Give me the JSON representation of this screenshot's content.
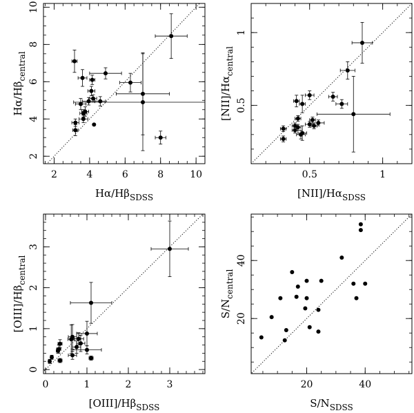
{
  "chart_data": [
    {
      "type": "scatter",
      "title": "",
      "xlabel": {
        "main": "Hα/Hβ",
        "sub": "SDSS"
      },
      "ylabel": {
        "main": "Hα/Hβ",
        "sub": "central"
      },
      "xlim": [
        1.4,
        10.5
      ],
      "ylim": [
        1.6,
        10.2
      ],
      "xticks": [
        2,
        4,
        6,
        8,
        10
      ],
      "yticks": [
        2,
        4,
        6,
        8,
        10
      ],
      "xminor": 0.5,
      "yminor": 0.5,
      "one_to_one": true,
      "points": [
        {
          "x": 8.6,
          "y": 8.45,
          "xerr": 0.9,
          "yerr": 1.2
        },
        {
          "x": 3.15,
          "y": 7.1,
          "xerr": 0.15,
          "yerr": 0.6
        },
        {
          "x": 3.6,
          "y": 6.2,
          "xerr": 0.25,
          "yerr": 0.45
        },
        {
          "x": 4.9,
          "y": 6.45,
          "xerr": 0.9,
          "yerr": 0.3
        },
        {
          "x": 4.15,
          "y": 6.1,
          "xerr": 0.15,
          "yerr": 0.25
        },
        {
          "x": 6.3,
          "y": 5.95,
          "xerr": 0.6,
          "yerr": 0.5
        },
        {
          "x": 4.1,
          "y": 5.5,
          "xerr": 0.2,
          "yerr": 0.25
        },
        {
          "x": 7.0,
          "y": 5.35,
          "xerr": 1.5,
          "yerr": 2.2
        },
        {
          "x": 4.2,
          "y": 5.1,
          "xerr": 0.2,
          "yerr": 0.2
        },
        {
          "x": 3.5,
          "y": 4.8,
          "xerr": 0.3,
          "yerr": 0.3
        },
        {
          "x": 3.95,
          "y": 4.95,
          "xerr": 0.35,
          "yerr": 0.2
        },
        {
          "x": 4.6,
          "y": 4.95,
          "xerr": 0.3,
          "yerr": 0.25
        },
        {
          "x": 7.0,
          "y": 4.9,
          "xerr": 3.9,
          "yerr": 2.6
        },
        {
          "x": 3.75,
          "y": 4.4,
          "xerr": 0.2,
          "yerr": 0.25
        },
        {
          "x": 3.65,
          "y": 4.3,
          "xerr": 0.2,
          "yerr": 0.2
        },
        {
          "x": 3.65,
          "y": 4.0,
          "xerr": 0.25,
          "yerr": 0.2
        },
        {
          "x": 3.2,
          "y": 3.8,
          "xerr": 0.2,
          "yerr": 0.2
        },
        {
          "x": 4.25,
          "y": 3.7,
          "xerr": 0,
          "yerr": 0
        },
        {
          "x": 3.2,
          "y": 3.4,
          "xerr": 0.15,
          "yerr": 0.3
        },
        {
          "x": 8.0,
          "y": 3.0,
          "xerr": 0.3,
          "yerr": 0.35
        }
      ]
    },
    {
      "type": "scatter",
      "title": "",
      "xlabel": {
        "main": "[NII]/Hα",
        "sub": "SDSS"
      },
      "ylabel": {
        "main": "[NII]/Hα",
        "sub": "central"
      },
      "xlim": [
        0.1,
        1.2
      ],
      "ylim": [
        0.1,
        1.2
      ],
      "xticks": [
        0.5,
        1
      ],
      "yticks": [
        0.5,
        1
      ],
      "xminor": 0.1,
      "yminor": 0.1,
      "one_to_one": true,
      "points": [
        {
          "x": 0.86,
          "y": 0.93,
          "xerr": 0.07,
          "yerr": 0.14
        },
        {
          "x": 0.8,
          "y": 0.44,
          "xerr": 0.25,
          "yerr": 0.26
        },
        {
          "x": 0.76,
          "y": 0.74,
          "xerr": 0.05,
          "yerr": 0.06
        },
        {
          "x": 0.66,
          "y": 0.56,
          "xerr": 0.03,
          "yerr": 0.03
        },
        {
          "x": 0.72,
          "y": 0.51,
          "xerr": 0.04,
          "yerr": 0.03
        },
        {
          "x": 0.5,
          "y": 0.57,
          "xerr": 0.03,
          "yerr": 0.03
        },
        {
          "x": 0.41,
          "y": 0.53,
          "xerr": 0.02,
          "yerr": 0.04
        },
        {
          "x": 0.45,
          "y": 0.51,
          "xerr": 0.02,
          "yerr": 0.06
        },
        {
          "x": 0.56,
          "y": 0.38,
          "xerr": 0.04,
          "yerr": 0.02
        },
        {
          "x": 0.52,
          "y": 0.4,
          "xerr": 0.02,
          "yerr": 0.02
        },
        {
          "x": 0.5,
          "y": 0.37,
          "xerr": 0.03,
          "yerr": 0.02
        },
        {
          "x": 0.53,
          "y": 0.36,
          "xerr": 0.02,
          "yerr": 0.02
        },
        {
          "x": 0.42,
          "y": 0.41,
          "xerr": 0.02,
          "yerr": 0.02
        },
        {
          "x": 0.4,
          "y": 0.36,
          "xerr": 0.02,
          "yerr": 0.02
        },
        {
          "x": 0.42,
          "y": 0.35,
          "xerr": 0.02,
          "yerr": 0.02
        },
        {
          "x": 0.32,
          "y": 0.34,
          "xerr": 0.02,
          "yerr": 0.02
        },
        {
          "x": 0.4,
          "y": 0.33,
          "xerr": 0.02,
          "yerr": 0.02
        },
        {
          "x": 0.45,
          "y": 0.31,
          "xerr": 0.03,
          "yerr": 0.05
        },
        {
          "x": 0.44,
          "y": 0.3,
          "xerr": 0.03,
          "yerr": 0.03
        },
        {
          "x": 0.32,
          "y": 0.27,
          "xerr": 0.02,
          "yerr": 0.02
        }
      ]
    },
    {
      "type": "scatter",
      "title": "",
      "xlabel": {
        "main": "[OIII]/Hβ",
        "sub": "SDSS"
      },
      "ylabel": {
        "main": "[OIII]/Hβ",
        "sub": "central"
      },
      "xlim": [
        -0.05,
        3.85
      ],
      "ylim": [
        -0.1,
        3.8
      ],
      "xticks": [
        0,
        1,
        2,
        3
      ],
      "yticks": [
        0,
        1,
        2,
        3
      ],
      "xminor": 0.2,
      "yminor": 0.2,
      "one_to_one": true,
      "points": [
        {
          "x": 3.0,
          "y": 2.95,
          "xerr": 0.45,
          "yerr": 0.68
        },
        {
          "x": 1.1,
          "y": 1.63,
          "xerr": 0.5,
          "yerr": 0.5
        },
        {
          "x": 1.0,
          "y": 0.88,
          "xerr": 0.25,
          "yerr": 0.3
        },
        {
          "x": 0.65,
          "y": 0.8,
          "xerr": 0.1,
          "yerr": 0.3
        },
        {
          "x": 0.62,
          "y": 0.74,
          "xerr": 0.08,
          "yerr": 0.35
        },
        {
          "x": 0.8,
          "y": 0.75,
          "xerr": 0.12,
          "yerr": 0.15
        },
        {
          "x": 0.85,
          "y": 0.64,
          "xerr": 0.1,
          "yerr": 0.2
        },
        {
          "x": 0.75,
          "y": 0.55,
          "xerr": 0.1,
          "yerr": 0.15
        },
        {
          "x": 0.35,
          "y": 0.63,
          "xerr": 0.05,
          "yerr": 0.1
        },
        {
          "x": 0.32,
          "y": 0.5,
          "xerr": 0.05,
          "yerr": 0.1
        },
        {
          "x": 0.3,
          "y": 0.46,
          "xerr": 0.04,
          "yerr": 0.06
        },
        {
          "x": 1.0,
          "y": 0.48,
          "xerr": 0.35,
          "yerr": 0.1
        },
        {
          "x": 0.65,
          "y": 0.35,
          "xerr": 0.1,
          "yerr": 0.1
        },
        {
          "x": 0.15,
          "y": 0.3,
          "xerr": 0.03,
          "yerr": 0.05
        },
        {
          "x": 0.35,
          "y": 0.22,
          "xerr": 0.05,
          "yerr": 0.05
        },
        {
          "x": 1.1,
          "y": 0.28,
          "xerr": 0.05,
          "yerr": 0.05
        },
        {
          "x": 0.1,
          "y": 0.2,
          "xerr": 0.03,
          "yerr": 0.05
        }
      ]
    },
    {
      "type": "scatter",
      "title": "",
      "xlabel": {
        "main": "S/N",
        "sub": "SDSS"
      },
      "ylabel": {
        "main": "S/N",
        "sub": "central"
      },
      "xlim": [
        1,
        56
      ],
      "ylim": [
        1,
        56
      ],
      "xticks": [
        20,
        40
      ],
      "yticks": [
        20,
        40
      ],
      "xminor": 5,
      "yminor": 5,
      "one_to_one": true,
      "points": [
        {
          "x": 38.5,
          "y": 52.5
        },
        {
          "x": 38.5,
          "y": 50.5
        },
        {
          "x": 32,
          "y": 41
        },
        {
          "x": 15,
          "y": 36
        },
        {
          "x": 20,
          "y": 33
        },
        {
          "x": 25,
          "y": 33
        },
        {
          "x": 36,
          "y": 32
        },
        {
          "x": 40,
          "y": 32
        },
        {
          "x": 17,
          "y": 31
        },
        {
          "x": 16.5,
          "y": 27.5
        },
        {
          "x": 11,
          "y": 27
        },
        {
          "x": 20,
          "y": 27
        },
        {
          "x": 37,
          "y": 27
        },
        {
          "x": 19.5,
          "y": 23.5
        },
        {
          "x": 24,
          "y": 23
        },
        {
          "x": 8,
          "y": 20.5
        },
        {
          "x": 21,
          "y": 17
        },
        {
          "x": 13,
          "y": 16
        },
        {
          "x": 24,
          "y": 15.5
        },
        {
          "x": 4.5,
          "y": 13.5
        },
        {
          "x": 12.5,
          "y": 12.5
        }
      ]
    }
  ]
}
